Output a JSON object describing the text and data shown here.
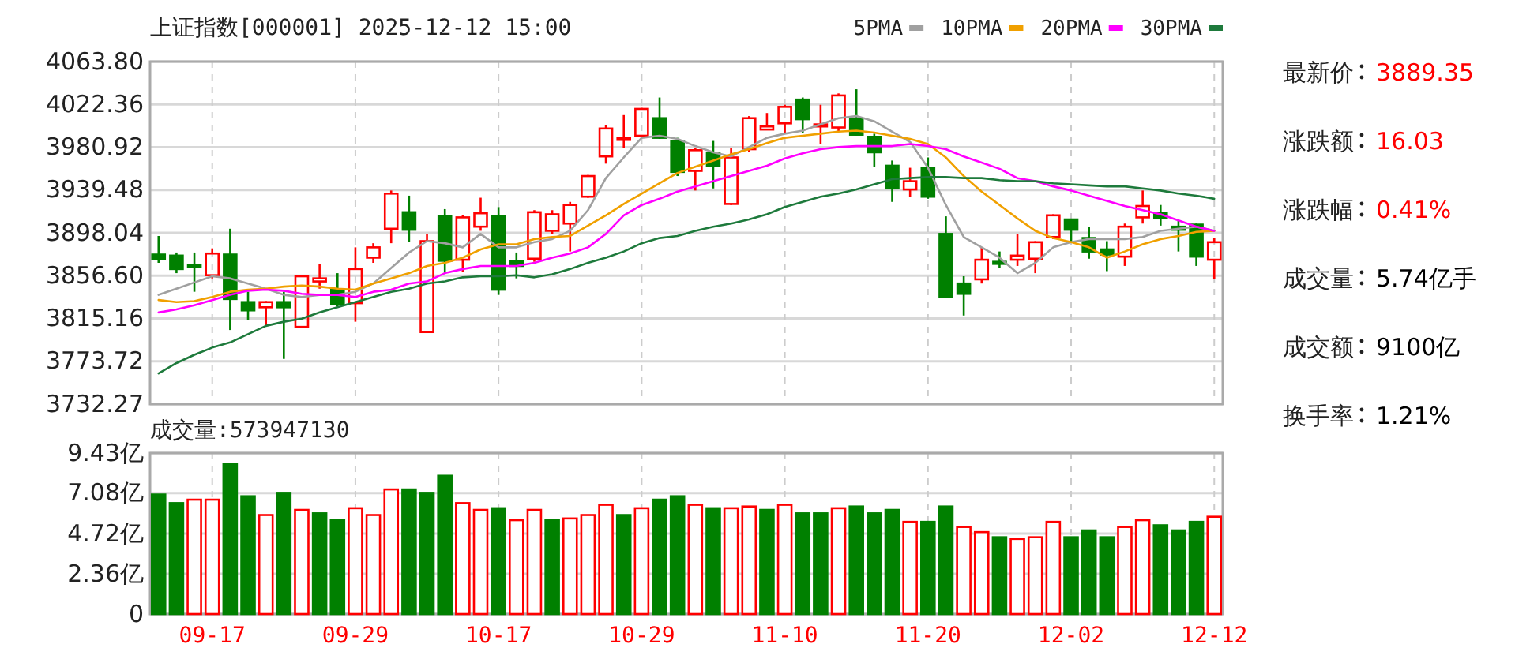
{
  "chart_data": [
    {
      "type": "candlestick",
      "title": "上证指数[000001] 2025-12-12 15:00",
      "categories": [
        null,
        null,
        null,
        null,
        null,
        null,
        null,
        null,
        null,
        null,
        null,
        null,
        null,
        null,
        null,
        null,
        null,
        null,
        null,
        null,
        null,
        null,
        null,
        null,
        null,
        null,
        null,
        null,
        null,
        null,
        null,
        null,
        null,
        null,
        null,
        null,
        null,
        null,
        null,
        null,
        null,
        null,
        null,
        null,
        null,
        null,
        null,
        null,
        null,
        null,
        null,
        null,
        null,
        null,
        null,
        null,
        null,
        null,
        null,
        null
      ],
      "ohlc": [
        [
          3877,
          3895,
          3869,
          3873
        ],
        [
          3876,
          3879,
          3859,
          3863
        ],
        [
          3867,
          3879,
          3841,
          3865
        ],
        [
          3857,
          3883,
          3854,
          3878
        ],
        [
          3877,
          3902,
          3804,
          3834
        ],
        [
          3831,
          3841,
          3814,
          3823
        ],
        [
          3826,
          3832,
          3808,
          3831
        ],
        [
          3831,
          3841,
          3776,
          3826
        ],
        [
          3807,
          3857,
          3806,
          3856
        ],
        [
          3851,
          3868,
          3844,
          3854
        ],
        [
          3843,
          3859,
          3827,
          3829
        ],
        [
          3830,
          3884,
          3812,
          3863
        ],
        [
          3874,
          3888,
          3869,
          3884
        ],
        [
          3902,
          3939,
          3888,
          3936
        ],
        [
          3918,
          3934,
          3889,
          3901
        ],
        [
          3802,
          3897,
          3802,
          3890
        ],
        [
          3914,
          3921,
          3859,
          3871
        ],
        [
          3872,
          3915,
          3860,
          3913
        ],
        [
          3904,
          3932,
          3900,
          3917
        ],
        [
          3914,
          3923,
          3838,
          3843
        ],
        [
          3871,
          3879,
          3854,
          3866
        ],
        [
          3873,
          3920,
          3870,
          3918
        ],
        [
          3900,
          3920,
          3897,
          3916
        ],
        [
          3907,
          3928,
          3880,
          3925
        ],
        [
          3933,
          3954,
          3932,
          3953
        ],
        [
          3972,
          4002,
          3965,
          3999
        ],
        [
          3988,
          4012,
          3980,
          3990
        ],
        [
          3992,
          4019,
          3990,
          4018
        ],
        [
          4009,
          4029,
          3989,
          3990
        ],
        [
          3987,
          3990,
          3953,
          3957
        ],
        [
          3958,
          3980,
          3939,
          3978
        ],
        [
          3975,
          3987,
          3941,
          3963
        ],
        [
          3926,
          3980,
          3925,
          3971
        ],
        [
          3979,
          4011,
          3976,
          4009
        ],
        [
          3998,
          4014,
          3998,
          4001
        ],
        [
          4004,
          4022,
          3994,
          4020
        ],
        [
          4027,
          4029,
          3995,
          4008
        ],
        [
          4001,
          4022,
          3984,
          4003
        ],
        [
          4000,
          4033,
          3996,
          4031
        ],
        [
          4008,
          4037,
          3992,
          3993
        ],
        [
          3991,
          3994,
          3962,
          3976
        ],
        [
          3963,
          3968,
          3928,
          3941
        ],
        [
          3940,
          3961,
          3933,
          3948
        ],
        [
          3961,
          3971,
          3931,
          3933
        ],
        [
          3897,
          3914,
          3836,
          3836
        ],
        [
          3849,
          3856,
          3818,
          3839
        ],
        [
          3853,
          3884,
          3849,
          3872
        ],
        [
          3870,
          3880,
          3864,
          3868
        ],
        [
          3872,
          3897,
          3866,
          3876
        ],
        [
          3873,
          3890,
          3859,
          3889
        ],
        [
          3894,
          3916,
          3892,
          3915
        ],
        [
          3911,
          3911,
          3889,
          3901
        ],
        [
          3893,
          3904,
          3873,
          3880
        ],
        [
          3882,
          3890,
          3861,
          3877
        ],
        [
          3875,
          3907,
          3866,
          3904
        ],
        [
          3913,
          3939,
          3907,
          3924
        ],
        [
          3917,
          3925,
          3905,
          3912
        ],
        [
          3904,
          3910,
          3880,
          3901
        ],
        [
          3906,
          3907,
          3866,
          3875
        ],
        [
          3872,
          3893,
          3853,
          3889
        ]
      ],
      "series": [
        {
          "name": "5PMA",
          "type": "line",
          "color": "#a0a0a0",
          "values": [
            3838,
            3844,
            3850,
            3856,
            3854,
            3849,
            3844,
            3838,
            3836,
            3838,
            3838,
            3841,
            3849,
            3864,
            3879,
            3890,
            3888,
            3884,
            3897,
            3884,
            3884,
            3889,
            3892,
            3900,
            3920,
            3951,
            3971,
            3990,
            3992,
            3989,
            3982,
            3976,
            3972,
            3981,
            3990,
            3994,
            3997,
            4003,
            4009,
            4011,
            4006,
            3996,
            3986,
            3961,
            3925,
            3894,
            3884,
            3874,
            3859,
            3869,
            3884,
            3889,
            3892,
            3892,
            3892,
            3894,
            3900,
            3902,
            3904,
            3900
          ]
        },
        {
          "name": "10PMA",
          "type": "line",
          "color": "#f0a000",
          "values": [
            3833,
            3831,
            3832,
            3836,
            3841,
            3843,
            3844,
            3846,
            3847,
            3846,
            3844,
            3843,
            3849,
            3854,
            3859,
            3866,
            3869,
            3874,
            3882,
            3887,
            3887,
            3892,
            3894,
            3895,
            3905,
            3915,
            3926,
            3936,
            3946,
            3956,
            3962,
            3968,
            3974,
            3979,
            3985,
            3990,
            3992,
            3994,
            3996,
            3997,
            3995,
            3992,
            3989,
            3984,
            3971,
            3953,
            3938,
            3925,
            3912,
            3900,
            3893,
            3889,
            3884,
            3874,
            3880,
            3887,
            3892,
            3895,
            3899,
            3900
          ]
        },
        {
          "name": "20PMA",
          "type": "line",
          "color": "#ff00ff",
          "values": [
            3821,
            3824,
            3828,
            3833,
            3838,
            3842,
            3843,
            3842,
            3839,
            3838,
            3838,
            3836,
            3841,
            3843,
            3849,
            3851,
            3859,
            3863,
            3866,
            3866,
            3866,
            3869,
            3874,
            3878,
            3884,
            3897,
            3915,
            3925,
            3931,
            3938,
            3943,
            3948,
            3953,
            3958,
            3963,
            3970,
            3975,
            3979,
            3981,
            3982,
            3982,
            3982,
            3984,
            3982,
            3979,
            3972,
            3966,
            3960,
            3951,
            3948,
            3943,
            3939,
            3934,
            3929,
            3924,
            3920,
            3916,
            3910,
            3904,
            3900
          ]
        },
        {
          "name": "30PMA",
          "type": "line",
          "color": "#1e7a3c",
          "values": [
            3762,
            3772,
            3780,
            3787,
            3792,
            3800,
            3808,
            3812,
            3815,
            3821,
            3826,
            3831,
            3836,
            3841,
            3844,
            3849,
            3851,
            3855,
            3856,
            3856,
            3857,
            3855,
            3858,
            3863,
            3869,
            3874,
            3880,
            3888,
            3893,
            3895,
            3900,
            3904,
            3907,
            3911,
            3916,
            3923,
            3928,
            3933,
            3936,
            3940,
            3945,
            3950,
            3951,
            3952,
            3952,
            3951,
            3951,
            3949,
            3948,
            3948,
            3946,
            3945,
            3944,
            3943,
            3943,
            3941,
            3939,
            3936,
            3934,
            3931
          ]
        }
      ],
      "ylim": [
        3732.27,
        4063.8
      ],
      "yticks": [
        3732.27,
        3773.72,
        3815.16,
        {
          "value": 3856.6,
          "label": "3856.60"
        },
        3898.04,
        3939.48,
        3980.92,
        4022.36,
        {
          "value": 4063.8,
          "label": "4063.80"
        }
      ],
      "grid": true,
      "legend": "top right",
      "tick_labels": "y"
    },
    {
      "type": "bar",
      "title": "成交量:573947130",
      "categories": [
        null,
        null,
        null,
        "09-17",
        null,
        null,
        null,
        null,
        null,
        null,
        null,
        "09-29",
        null,
        null,
        null,
        null,
        null,
        null,
        null,
        "10-17",
        null,
        null,
        null,
        null,
        null,
        null,
        null,
        "10-29",
        null,
        null,
        null,
        null,
        null,
        null,
        null,
        "11-10",
        null,
        null,
        null,
        null,
        null,
        null,
        null,
        "11-20",
        null,
        null,
        null,
        null,
        null,
        null,
        null,
        "12-02",
        null,
        null,
        null,
        null,
        null,
        null,
        null,
        "12-12"
      ],
      "values": [
        7.0,
        6.5,
        6.7,
        6.7,
        8.8,
        6.9,
        5.8,
        7.1,
        6.1,
        5.9,
        5.5,
        6.2,
        5.8,
        7.3,
        7.3,
        7.1,
        8.1,
        6.5,
        6.1,
        6.2,
        5.5,
        6.1,
        5.5,
        5.6,
        5.8,
        6.4,
        5.8,
        6.2,
        6.7,
        6.9,
        6.4,
        6.2,
        6.2,
        6.3,
        6.1,
        6.4,
        5.9,
        5.9,
        6.2,
        6.3,
        5.9,
        6.1,
        5.4,
        5.4,
        6.3,
        5.1,
        4.8,
        4.5,
        4.4,
        4.5,
        5.4,
        4.5,
        4.9,
        4.5,
        5.1,
        5.5,
        5.2,
        4.9,
        5.4,
        5.7
      ],
      "colors": [
        "#008000",
        "#008000",
        "#ff0000",
        "#ff0000",
        "#008000",
        "#008000",
        "#ff0000",
        "#008000",
        "#ff0000",
        "#008000",
        "#008000",
        "#ff0000",
        "#ff0000",
        "#ff0000",
        "#008000",
        "#008000",
        "#008000",
        "#ff0000",
        "#ff0000",
        "#008000",
        "#ff0000",
        "#ff0000",
        "#008000",
        "#ff0000",
        "#ff0000",
        "#ff0000",
        "#008000",
        "#ff0000",
        "#008000",
        "#008000",
        "#ff0000",
        "#008000",
        "#ff0000",
        "#ff0000",
        "#008000",
        "#ff0000",
        "#008000",
        "#008000",
        "#ff0000",
        "#008000",
        "#008000",
        "#008000",
        "#ff0000",
        "#008000",
        "#008000",
        "#ff0000",
        "#ff0000",
        "#008000",
        "#ff0000",
        "#ff0000",
        "#ff0000",
        "#008000",
        "#008000",
        "#008000",
        "#ff0000",
        "#ff0000",
        "#008000",
        "#008000",
        "#008000",
        "#ff0000"
      ],
      "ylim": [
        0,
        9.43
      ],
      "yticks": [
        0,
        {
          "value": 2.36,
          "label": "2.36亿"
        },
        {
          "value": 4.72,
          "label": "4.72亿"
        },
        {
          "value": 7.08,
          "label": "7.08亿"
        },
        {
          "value": 9.43,
          "label": "9.43亿"
        }
      ],
      "grid": true
    },
    {
      "type": "other",
      "categories": [
        "最新价",
        "涨跌额",
        "涨跌幅",
        "成交量",
        "成交额",
        "换手率"
      ],
      "value_labels": [
        "3889.35",
        "16.03",
        "0.41%",
        "5.74亿手",
        "9100亿",
        "1.21%"
      ],
      "colors": [
        "#ff0000",
        "#ff0000",
        "#ff0000",
        "#000000",
        "#000000",
        "#000000"
      ]
    }
  ]
}
